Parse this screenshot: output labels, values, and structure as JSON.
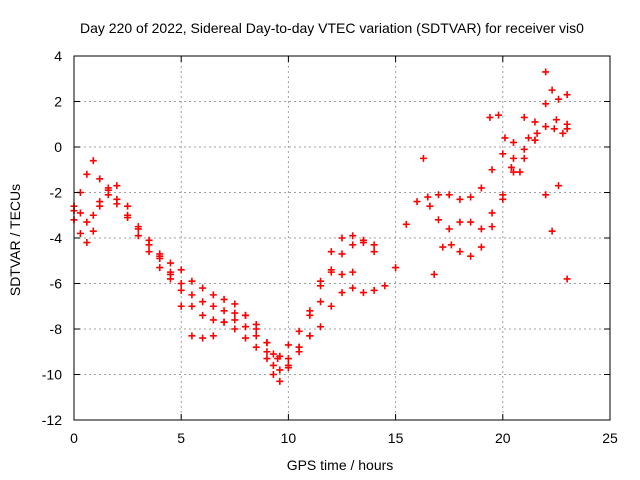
{
  "chart_data": {
    "type": "scatter",
    "title": "Day 220 of 2022, Sidereal Day-to-day VTEC variation (SDTVAR) for receiver vis0",
    "xlabel": "GPS time / hours",
    "ylabel": "SDTVAR / TECUs",
    "xlim": [
      0,
      25
    ],
    "ylim": [
      -12,
      4
    ],
    "xticks": [
      0,
      5,
      10,
      15,
      20,
      25
    ],
    "yticks": [
      -12,
      -10,
      -8,
      -6,
      -4,
      -2,
      0,
      2,
      4
    ],
    "grid": true,
    "marker": "+",
    "color": "#ff0000",
    "series": [
      {
        "x": [
          0.0,
          0.3,
          0.6,
          0.9,
          1.2,
          1.6,
          2.0,
          2.5,
          3.0,
          3.5,
          4.0,
          4.5,
          5.0,
          5.5,
          6.0,
          6.5,
          7.0,
          7.5,
          8.0,
          8.5,
          9.0,
          9.3,
          9.6,
          10.0,
          10.5,
          11.0,
          11.5,
          12.0,
          12.5,
          13.0,
          13.5,
          14.0,
          14.5,
          15.0,
          15.5,
          16.0,
          16.5,
          17.0,
          17.5,
          18.0,
          18.5,
          19.0,
          19.5,
          20.0,
          20.5,
          21.0,
          21.5,
          22.0,
          22.5,
          23.0
        ],
        "y": [
          -2.6,
          -2.9,
          -3.3,
          -3.0,
          -2.4,
          -1.8,
          -1.7,
          -2.6,
          -3.5,
          -4.1,
          -4.7,
          -5.5,
          -6.0,
          -6.5,
          -6.8,
          -7.0,
          -7.2,
          -7.6,
          -7.9,
          -8.3,
          -9.0,
          -9.6,
          -9.8,
          -9.3,
          -8.8,
          -8.3,
          -7.9,
          -7.0,
          -6.4,
          -6.2,
          -6.4,
          -6.3,
          -6.1,
          -5.3,
          -3.4,
          -2.4,
          -2.2,
          -2.1,
          -2.1,
          -2.3,
          -2.2,
          -1.8,
          -1.0,
          -0.3,
          -0.5,
          -0.1,
          0.3,
          0.9,
          1.2,
          1.0
        ]
      },
      {
        "x": [
          0.0,
          0.3,
          0.6,
          0.9,
          1.2,
          1.6,
          2.0,
          2.5,
          3.0,
          3.5,
          4.0,
          4.5,
          5.0,
          5.5,
          6.0,
          6.5,
          7.0,
          7.5,
          8.0,
          8.5,
          9.0,
          9.3,
          9.6,
          10.0,
          10.5,
          11.0,
          11.5,
          12.0,
          12.5,
          13.0,
          13.5,
          14.0
        ],
        "y": [
          -3.2,
          -3.8,
          -4.2,
          -3.7,
          -2.6,
          -1.9,
          -2.3,
          -3.1,
          -3.9,
          -4.6,
          -5.3,
          -5.8,
          -6.3,
          -7.0,
          -7.4,
          -7.6,
          -7.7,
          -8.0,
          -8.4,
          -8.8,
          -9.3,
          -10.0,
          -10.3,
          -9.6,
          -9.0,
          -8.3,
          -6.8,
          -5.5,
          -4.7,
          -4.3,
          -4.2,
          -4.3
        ]
      },
      {
        "x": [
          0.0,
          0.3,
          0.6,
          0.9,
          1.2,
          1.6,
          2.0,
          2.5,
          3.0,
          3.5,
          4.0,
          4.5,
          5.0,
          5.5,
          6.0,
          6.5,
          7.0,
          7.5,
          8.0,
          8.5,
          9.0,
          9.3,
          9.6,
          10.0,
          10.5,
          11.0,
          11.5,
          12.0,
          12.5,
          13.0,
          13.5,
          14.0
        ],
        "y": [
          -2.8,
          -2.0,
          -1.2,
          -0.6,
          -1.4,
          -2.1,
          -2.5,
          -3.0,
          -3.6,
          -4.3,
          -4.8,
          -5.1,
          -5.4,
          -5.9,
          -6.2,
          -6.5,
          -6.7,
          -6.9,
          -7.4,
          -8.0,
          -8.6,
          -9.1,
          -9.2,
          -8.7,
          -8.1,
          -7.2,
          -5.9,
          -4.6,
          -4.0,
          -3.9,
          -4.1,
          -4.6
        ]
      },
      {
        "x": [
          4.0,
          4.5,
          5.0,
          5.5,
          6.0,
          6.5,
          7.0,
          7.5,
          8.0,
          8.5,
          9.0,
          9.5,
          10.0,
          10.5,
          11.0,
          11.5,
          12.0,
          12.5,
          13.0
        ],
        "y": [
          -4.9,
          -5.6,
          -7.0,
          -8.3,
          -8.4,
          -8.3,
          -7.7,
          -7.3,
          -7.4,
          -7.8,
          -8.6,
          -9.3,
          -9.7,
          -8.8,
          -7.4,
          -6.1,
          -5.4,
          -5.6,
          -5.5
        ]
      },
      {
        "x": [
          16.3,
          16.6,
          17.0,
          17.5,
          18.0,
          18.5,
          19.0,
          19.5,
          20.0,
          20.5,
          21.0,
          21.5,
          22.0,
          22.3,
          22.6,
          23.0
        ],
        "y": [
          -0.5,
          -2.6,
          -3.2,
          -3.6,
          -3.3,
          -3.3,
          -3.6,
          -2.9,
          -2.3,
          -1.1,
          -0.5,
          0.3,
          3.3,
          2.5,
          2.1,
          2.3
        ]
      },
      {
        "x": [
          16.8,
          17.2,
          17.6,
          18.0,
          18.5,
          19.0,
          19.5,
          20.0,
          20.5,
          21.0,
          21.5,
          22.0,
          22.3,
          22.6,
          23.0
        ],
        "y": [
          -5.6,
          -4.4,
          -4.3,
          -4.6,
          -4.8,
          -4.4,
          -3.5,
          -2.1,
          0.2,
          1.3,
          1.1,
          -2.1,
          -3.7,
          -1.7,
          -5.8
        ]
      },
      {
        "x": [
          19.4,
          19.8,
          20.1,
          20.4,
          20.8,
          21.2,
          21.6,
          22.0,
          22.4,
          22.8,
          23.0
        ],
        "y": [
          1.3,
          1.4,
          0.4,
          -0.9,
          -1.1,
          0.4,
          0.6,
          1.9,
          0.8,
          0.6,
          0.8
        ]
      }
    ]
  }
}
